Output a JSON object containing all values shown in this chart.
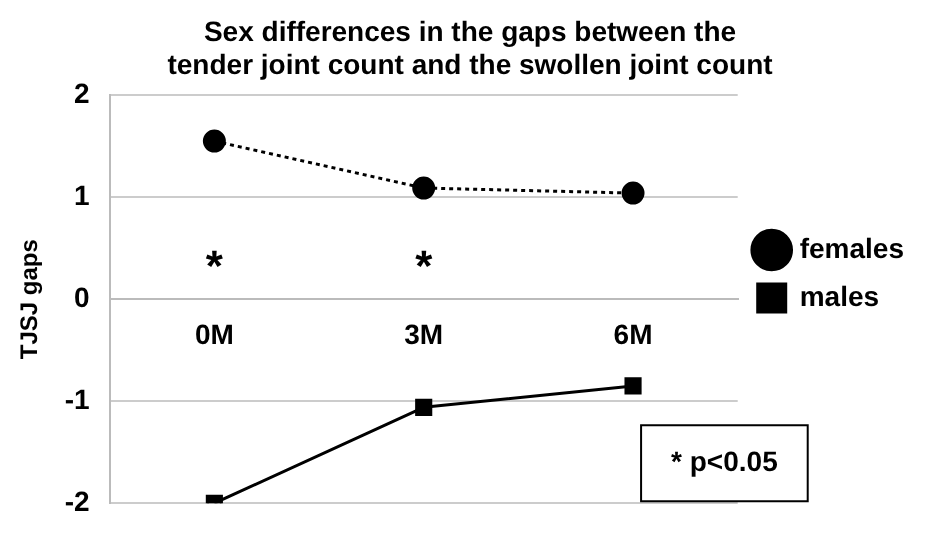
{
  "chart_data": {
    "type": "line",
    "title": "Sex differences in the gaps between the\ntender joint count and the swollen joint count",
    "ylabel": "TJSJ gaps",
    "categories": [
      "0M",
      "3M",
      "6M"
    ],
    "series": [
      {
        "name": "females",
        "color": "#000000",
        "values": [
          1.55,
          1.09,
          1.04
        ],
        "marker": "circle",
        "line_style": "dotted"
      },
      {
        "name": "males",
        "color": "#000000",
        "values": [
          -2,
          -1.06,
          -0.85
        ],
        "marker": "square",
        "line_style": "solid"
      }
    ],
    "ylim": [
      -2,
      2
    ],
    "yticks": [
      -2,
      -1,
      0,
      1,
      2
    ],
    "grid": "y",
    "legend": "right",
    "annotations": [
      "*",
      "*",
      "* p<0.05"
    ]
  }
}
